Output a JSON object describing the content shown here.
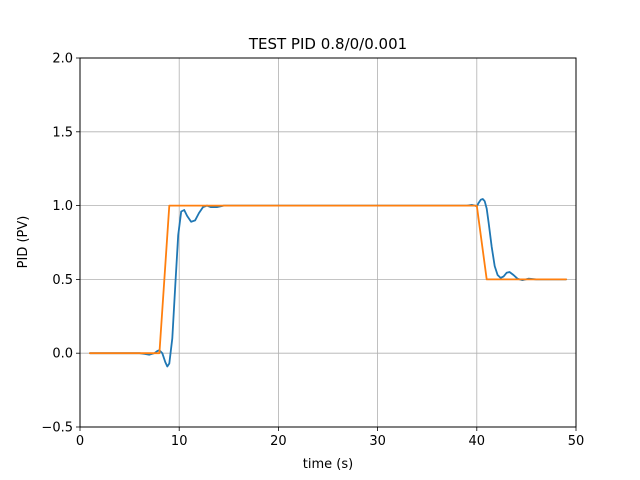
{
  "chart_data": {
    "type": "line",
    "title": "TEST PID 0.8/0/0.001",
    "xlabel": "time (s)",
    "ylabel": "PID (PV)",
    "xlim": [
      0,
      50
    ],
    "ylim": [
      -0.5,
      2.0
    ],
    "xticks": [
      0,
      10,
      20,
      30,
      40,
      50
    ],
    "yticks": [
      -0.5,
      0.0,
      0.5,
      1.0,
      1.5,
      2.0
    ],
    "xtick_labels": [
      "0",
      "10",
      "20",
      "30",
      "40",
      "50"
    ],
    "ytick_labels": [
      "−0.5",
      "0.0",
      "0.5",
      "1.0",
      "1.5",
      "2.0"
    ],
    "grid": true,
    "series": [
      {
        "color": "#1f77b4",
        "x": [
          1,
          5,
          6.0,
          6.5,
          7.0,
          7.5,
          7.8,
          8.0,
          8.3,
          8.6,
          8.8,
          9.0,
          9.3,
          9.6,
          9.9,
          10.2,
          10.5,
          10.8,
          11.2,
          11.6,
          12.0,
          12.4,
          12.8,
          13.2,
          13.8,
          14.5,
          16,
          20,
          25,
          30,
          35,
          38,
          39,
          39.5,
          39.8,
          40.0,
          40.2,
          40.4,
          40.6,
          40.8,
          41.0,
          41.2,
          41.5,
          41.8,
          42.1,
          42.4,
          42.7,
          43.0,
          43.3,
          43.7,
          44.1,
          44.6,
          45.2,
          46,
          47,
          49
        ],
        "y": [
          0,
          0,
          0,
          -0.005,
          -0.01,
          0.0,
          0.015,
          0.02,
          0.0,
          -0.06,
          -0.09,
          -0.07,
          0.1,
          0.45,
          0.8,
          0.96,
          0.97,
          0.93,
          0.89,
          0.9,
          0.95,
          0.99,
          1.0,
          0.99,
          0.99,
          1.0,
          1.0,
          1.0,
          1.0,
          1.0,
          1.0,
          1.0,
          1.0,
          1.005,
          1.0,
          0.995,
          1.02,
          1.04,
          1.045,
          1.03,
          0.98,
          0.88,
          0.72,
          0.59,
          0.53,
          0.51,
          0.52,
          0.545,
          0.55,
          0.53,
          0.505,
          0.495,
          0.505,
          0.5,
          0.5,
          0.5
        ]
      },
      {
        "color": "#ff7f0e",
        "x": [
          1,
          8,
          9,
          40,
          41,
          49
        ],
        "y": [
          0,
          0,
          1,
          1,
          0.5,
          0.5
        ]
      }
    ]
  }
}
